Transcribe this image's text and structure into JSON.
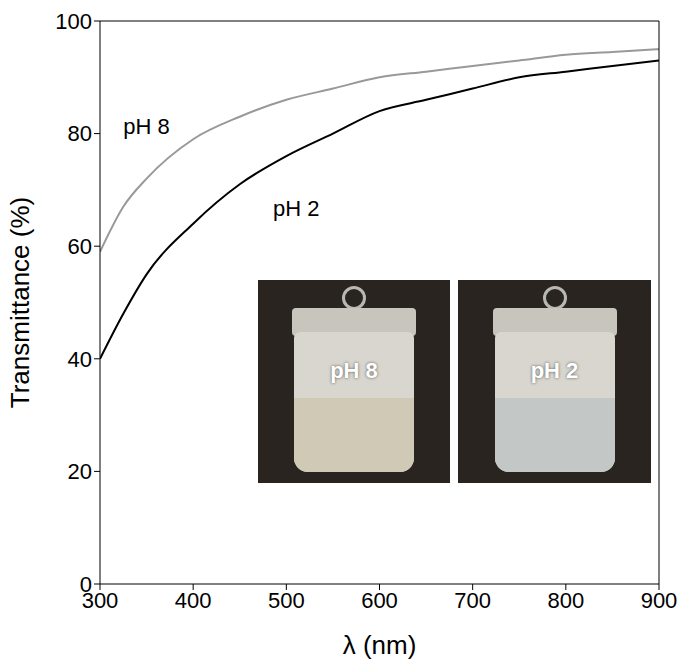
{
  "chart_data": {
    "type": "line",
    "x_label": "λ (nm)",
    "y_label": "Transmittance (%)",
    "x": [
      300,
      325,
      350,
      400,
      450,
      500,
      550,
      600,
      650,
      700,
      750,
      800,
      850,
      900
    ],
    "series": [
      {
        "name": "pH 8",
        "color": "#999999",
        "values": [
          59,
          67,
          72,
          79,
          83,
          86,
          88,
          90,
          91,
          92,
          93,
          94,
          94.5,
          95
        ]
      },
      {
        "name": "pH 2",
        "color": "#000000",
        "values": [
          40,
          48,
          55,
          64,
          71,
          76,
          80,
          84,
          86,
          88,
          90,
          91,
          92,
          93
        ]
      }
    ],
    "xlim": [
      300,
      900
    ],
    "xticks": [
      300,
      400,
      500,
      600,
      700,
      800,
      900
    ],
    "ylim": [
      0,
      100
    ],
    "yticks": [
      0,
      20,
      40,
      60,
      80,
      100
    ]
  }
}
